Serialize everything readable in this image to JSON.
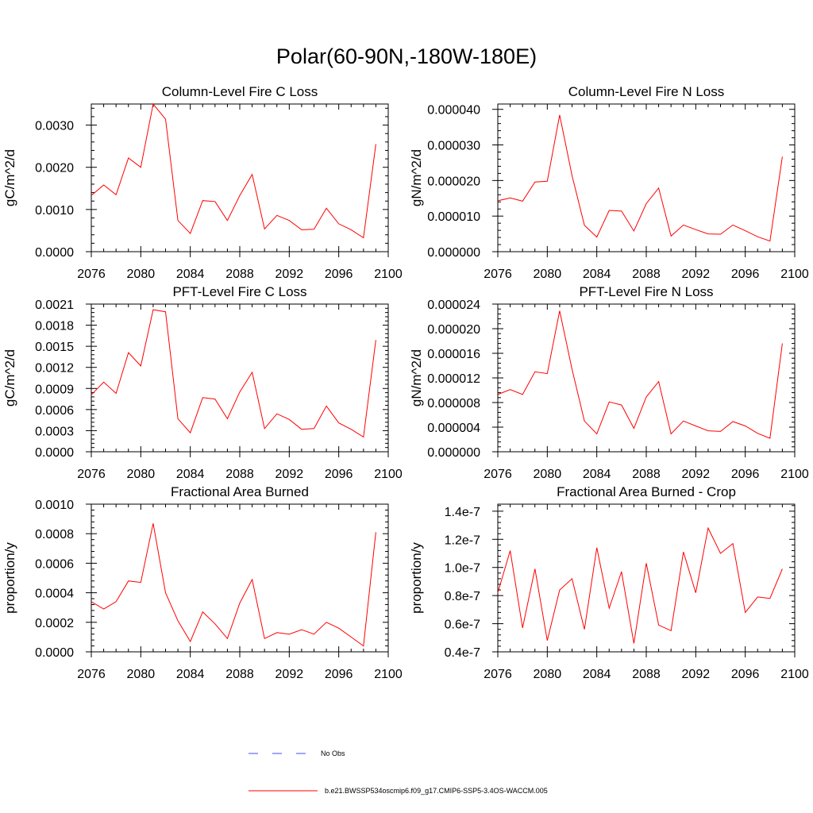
{
  "figure_title": "Polar(60-90N,-180W-180E)",
  "legend": {
    "obs_label": "No Obs",
    "model_label": "b.e21.BWSSP534oscmip6.f09_g17.CMIP6-SSP5-3.4OS-WACCM.005",
    "model_color": "#ff0000",
    "obs_color": "#4a4aff"
  },
  "chart_data": [
    {
      "type": "line",
      "title": "Column-Level Fire C Loss",
      "ylabel": "gC/m^2/d",
      "xlim": [
        2076,
        2100
      ],
      "ylim": [
        0,
        0.0035
      ],
      "xticks": [
        2076,
        2080,
        2084,
        2088,
        2092,
        2096,
        2100
      ],
      "xtick_labels": [
        "2076",
        "2080",
        "2084",
        "2088",
        "2092",
        "2096",
        "2100"
      ],
      "yticks": [
        0,
        0.001,
        0.002,
        0.003
      ],
      "ytick_labels": [
        "0.0000",
        "0.0010",
        "0.0020",
        "0.0030"
      ],
      "x": [
        2076,
        2077,
        2078,
        2079,
        2080,
        2081,
        2082,
        2083,
        2084,
        2085,
        2086,
        2087,
        2088,
        2089,
        2090,
        2091,
        2092,
        2093,
        2094,
        2095,
        2096,
        2097,
        2098,
        2099
      ],
      "values": [
        0.00133,
        0.00158,
        0.00135,
        0.00222,
        0.002,
        0.0035,
        0.00314,
        0.00074,
        0.00043,
        0.00121,
        0.00119,
        0.00074,
        0.00133,
        0.00183,
        0.00054,
        0.00086,
        0.00074,
        0.00052,
        0.00053,
        0.00103,
        0.00066,
        0.00052,
        0.00033,
        0.00255
      ]
    },
    {
      "type": "line",
      "title": "Column-Level Fire N Loss",
      "ylabel": "gN/m^2/d",
      "xlim": [
        2076,
        2100
      ],
      "ylim": [
        0,
        4.15e-05
      ],
      "xticks": [
        2076,
        2080,
        2084,
        2088,
        2092,
        2096,
        2100
      ],
      "xtick_labels": [
        "2076",
        "2080",
        "2084",
        "2088",
        "2092",
        "2096",
        "2100"
      ],
      "yticks": [
        0,
        1e-05,
        2e-05,
        3e-05,
        4e-05
      ],
      "ytick_labels": [
        "0.000000",
        "0.000010",
        "0.000020",
        "0.000030",
        "0.000040"
      ],
      "x": [
        2076,
        2077,
        2078,
        2079,
        2080,
        2081,
        2082,
        2083,
        2084,
        2085,
        2086,
        2087,
        2088,
        2089,
        2090,
        2091,
        2092,
        2093,
        2094,
        2095,
        2096,
        2097,
        2098,
        2099
      ],
      "values": [
        1.43e-05,
        1.51e-05,
        1.42e-05,
        1.96e-05,
        1.98e-05,
        3.84e-05,
        2.14e-05,
        7.4e-06,
        4.1e-06,
        1.16e-05,
        1.14e-05,
        5.8e-06,
        1.35e-05,
        1.79e-05,
        4.4e-06,
        7.5e-06,
        6.2e-06,
        5e-06,
        4.9e-06,
        7.5e-06,
        5.9e-06,
        4.2e-06,
        3e-06,
        2.67e-05
      ]
    },
    {
      "type": "line",
      "title": "PFT-Level Fire C Loss",
      "ylabel": "gC/m^2/d",
      "xlim": [
        2076,
        2100
      ],
      "ylim": [
        0,
        0.0021
      ],
      "xticks": [
        2076,
        2080,
        2084,
        2088,
        2092,
        2096,
        2100
      ],
      "xtick_labels": [
        "2076",
        "2080",
        "2084",
        "2088",
        "2092",
        "2096",
        "2100"
      ],
      "yticks": [
        0,
        0.0003,
        0.0006,
        0.0009,
        0.0012,
        0.0015,
        0.0018,
        0.0021
      ],
      "ytick_labels": [
        "0.0000",
        "0.0003",
        "0.0006",
        "0.0009",
        "0.0012",
        "0.0015",
        "0.0018",
        "0.0021"
      ],
      "x": [
        2076,
        2077,
        2078,
        2079,
        2080,
        2081,
        2082,
        2083,
        2084,
        2085,
        2086,
        2087,
        2088,
        2089,
        2090,
        2091,
        2092,
        2093,
        2094,
        2095,
        2096,
        2097,
        2098,
        2099
      ],
      "values": [
        0.00081,
        0.00099,
        0.00083,
        0.00141,
        0.00122,
        0.00202,
        0.00199,
        0.00047,
        0.00027,
        0.00077,
        0.00075,
        0.00047,
        0.00085,
        0.00113,
        0.00033,
        0.00054,
        0.00046,
        0.00032,
        0.00033,
        0.00065,
        0.00041,
        0.00032,
        0.00021,
        0.00159
      ]
    },
    {
      "type": "line",
      "title": "PFT-Level Fire N Loss",
      "ylabel": "gN/m^2/d",
      "xlim": [
        2076,
        2100
      ],
      "ylim": [
        0,
        2.4e-05
      ],
      "xticks": [
        2076,
        2080,
        2084,
        2088,
        2092,
        2096,
        2100
      ],
      "xtick_labels": [
        "2076",
        "2080",
        "2084",
        "2088",
        "2092",
        "2096",
        "2100"
      ],
      "yticks": [
        0,
        4e-06,
        8e-06,
        1.2e-05,
        1.6e-05,
        2e-05,
        2.4e-05
      ],
      "ytick_labels": [
        "0.000000",
        "0.000004",
        "0.000008",
        "0.000012",
        "0.000016",
        "0.000020",
        "0.000024"
      ],
      "x": [
        2076,
        2077,
        2078,
        2079,
        2080,
        2081,
        2082,
        2083,
        2084,
        2085,
        2086,
        2087,
        2088,
        2089,
        2090,
        2091,
        2092,
        2093,
        2094,
        2095,
        2096,
        2097,
        2098,
        2099
      ],
      "values": [
        9.3e-06,
        1.01e-05,
        9.3e-06,
        1.3e-05,
        1.27e-05,
        2.29e-05,
        1.34e-05,
        5e-06,
        2.9e-06,
        8.1e-06,
        7.6e-06,
        3.8e-06,
        8.9e-06,
        1.14e-05,
        2.9e-06,
        5e-06,
        4.2e-06,
        3.4e-06,
        3.3e-06,
        4.9e-06,
        4.2e-06,
        3e-06,
        2.2e-06,
        1.76e-05
      ]
    },
    {
      "type": "line",
      "title": "Fractional Area Burned",
      "ylabel": "proportion/y",
      "xlim": [
        2076,
        2100
      ],
      "ylim": [
        0,
        0.001
      ],
      "xticks": [
        2076,
        2080,
        2084,
        2088,
        2092,
        2096,
        2100
      ],
      "xtick_labels": [
        "2076",
        "2080",
        "2084",
        "2088",
        "2092",
        "2096",
        "2100"
      ],
      "yticks": [
        0,
        0.0002,
        0.0004,
        0.0006,
        0.0008,
        0.001
      ],
      "ytick_labels": [
        "0.0000",
        "0.0002",
        "0.0004",
        "0.0006",
        "0.0008",
        "0.0010"
      ],
      "x": [
        2076,
        2077,
        2078,
        2079,
        2080,
        2081,
        2082,
        2083,
        2084,
        2085,
        2086,
        2087,
        2088,
        2089,
        2090,
        2091,
        2092,
        2093,
        2094,
        2095,
        2096,
        2097,
        2098,
        2099
      ],
      "values": [
        0.00034,
        0.00029,
        0.00034,
        0.00048,
        0.00047,
        0.00087,
        0.0004,
        0.00021,
        7e-05,
        0.00027,
        0.00019,
        9e-05,
        0.00033,
        0.00049,
        9e-05,
        0.00013,
        0.00012,
        0.00015,
        0.00012,
        0.0002,
        0.00016,
        0.0001,
        4e-05,
        0.00081
      ]
    },
    {
      "type": "line",
      "title": "Fractional Area Burned - Crop",
      "ylabel": "proportion/y",
      "xlim": [
        2076,
        2100
      ],
      "ylim": [
        4e-08,
        1.45e-07
      ],
      "xticks": [
        2076,
        2080,
        2084,
        2088,
        2092,
        2096,
        2100
      ],
      "xtick_labels": [
        "2076",
        "2080",
        "2084",
        "2088",
        "2092",
        "2096",
        "2100"
      ],
      "yticks": [
        4e-08,
        6e-08,
        8e-08,
        1e-07,
        1.2e-07,
        1.4e-07
      ],
      "ytick_labels": [
        "0.4e-7",
        "0.6e-7",
        "0.8e-7",
        "1.0e-7",
        "1.2e-7",
        "1.4e-7"
      ],
      "x": [
        2076,
        2077,
        2078,
        2079,
        2080,
        2081,
        2082,
        2083,
        2084,
        2085,
        2086,
        2087,
        2088,
        2089,
        2090,
        2091,
        2092,
        2093,
        2094,
        2095,
        2096,
        2097,
        2098,
        2099
      ],
      "values": [
        8.2e-08,
        1.12e-07,
        5.7e-08,
        9.9e-08,
        4.8e-08,
        8.4e-08,
        9.2e-08,
        5.6e-08,
        1.14e-07,
        7.1e-08,
        9.7e-08,
        4.6e-08,
        1.03e-07,
        5.9e-08,
        5.5e-08,
        1.11e-07,
        8.2e-08,
        1.28e-07,
        1.1e-07,
        1.17e-07,
        6.8e-08,
        7.9e-08,
        7.8e-08,
        9.9e-08
      ]
    }
  ]
}
